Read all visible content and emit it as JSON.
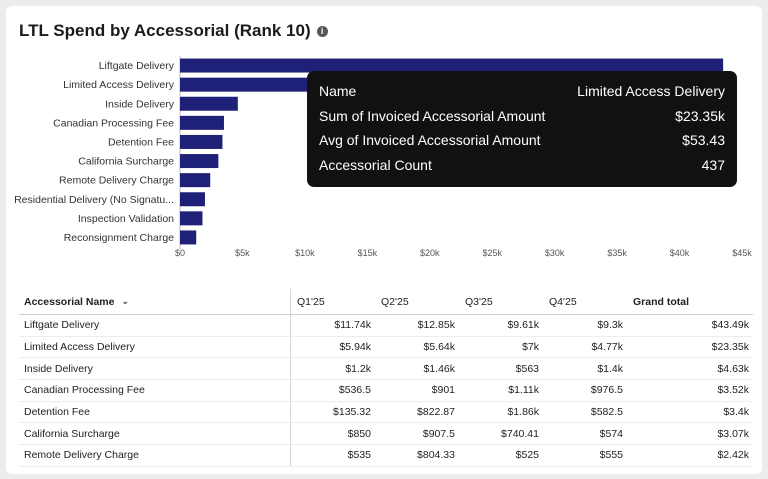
{
  "title": "LTL Spend by Accessorial (Rank 10)",
  "info_icon": "info-icon",
  "chart_data": {
    "type": "bar",
    "orientation": "horizontal",
    "categories": [
      "Liftgate Delivery",
      "Limited Access Delivery",
      "Inside Delivery",
      "Canadian Processing Fee",
      "Detention Fee",
      "California Surcharge",
      "Remote Delivery Charge",
      "Residential Delivery (No Signatu...",
      "Inspection Validation",
      "Reconsignment Charge"
    ],
    "values": [
      43490,
      23350,
      4630,
      3520,
      3400,
      3070,
      2420,
      2000,
      1800,
      1300
    ],
    "xlim": [
      0,
      45000
    ],
    "x_ticks": [
      "$0",
      "$5k",
      "$10k",
      "$15k",
      "$20k",
      "$25k",
      "$30k",
      "$35k",
      "$40k",
      "$45k"
    ],
    "bar_color": "#1f2178"
  },
  "tooltip": {
    "rows": [
      {
        "label": "Name",
        "value": "Limited Access Delivery"
      },
      {
        "label": "Sum of Invoiced Accessorial Amount",
        "value": "$23.35k"
      },
      {
        "label": "Avg of Invoiced Accessorial Amount",
        "value": "$53.43"
      },
      {
        "label": "Accessorial Count",
        "value": "437"
      }
    ]
  },
  "table": {
    "headers": [
      "Accessorial Name",
      "Q1'25",
      "Q2'25",
      "Q3'25",
      "Q4'25",
      "Grand total"
    ],
    "sort_icon": "chevron-down-icon",
    "rows": [
      [
        "Liftgate Delivery",
        "$11.74k",
        "$12.85k",
        "$9.61k",
        "$9.3k",
        "$43.49k"
      ],
      [
        "Limited Access Delivery",
        "$5.94k",
        "$5.64k",
        "$7k",
        "$4.77k",
        "$23.35k"
      ],
      [
        "Inside Delivery",
        "$1.2k",
        "$1.46k",
        "$563",
        "$1.4k",
        "$4.63k"
      ],
      [
        "Canadian Processing Fee",
        "$536.5",
        "$901",
        "$1.11k",
        "$976.5",
        "$3.52k"
      ],
      [
        "Detention Fee",
        "$135.32",
        "$822.87",
        "$1.86k",
        "$582.5",
        "$3.4k"
      ],
      [
        "California Surcharge",
        "$850",
        "$907.5",
        "$740.41",
        "$574",
        "$3.07k"
      ],
      [
        "Remote Delivery Charge",
        "$535",
        "$804.33",
        "$525",
        "$555",
        "$2.42k"
      ]
    ]
  }
}
